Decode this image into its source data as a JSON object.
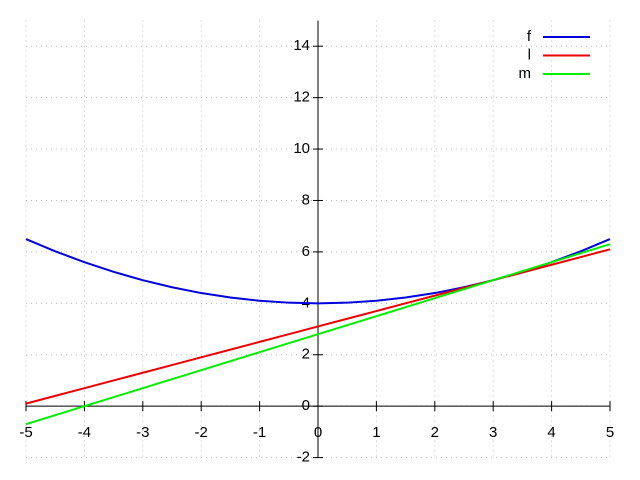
{
  "chart_data": {
    "type": "line",
    "x": [
      -5,
      -4.5,
      -4,
      -3.5,
      -3,
      -2.5,
      -2,
      -1.5,
      -1,
      -0.5,
      0,
      0.5,
      1,
      1.5,
      2,
      2.5,
      3,
      3.5,
      4,
      4.5,
      5
    ],
    "series": [
      {
        "name": "f",
        "color": "#0000dd",
        "values": [
          6.5,
          6.025,
          5.6,
          5.225,
          4.9,
          4.625,
          4.4,
          4.225,
          4.1,
          4.025,
          4,
          4.025,
          4.1,
          4.225,
          4.4,
          4.625,
          4.9,
          5.225,
          5.6,
          6.025,
          6.5
        ]
      },
      {
        "name": "l",
        "color": "#ee0000",
        "values": [
          0.1,
          0.4,
          0.7,
          1.0,
          1.3,
          1.6,
          1.9,
          2.2,
          2.5,
          2.8,
          3.1,
          3.4,
          3.7,
          4.0,
          4.3,
          4.6,
          4.9,
          5.2,
          5.5,
          5.8,
          6.1
        ]
      },
      {
        "name": "m",
        "color": "#00ee00",
        "values": [
          -0.7,
          -0.35,
          0,
          0.35,
          0.7,
          1.05,
          1.4,
          1.75,
          2.1,
          2.45,
          2.8,
          3.15,
          3.5,
          3.85,
          4.2,
          4.55,
          4.9,
          5.25,
          5.6,
          5.95,
          6.3
        ]
      }
    ],
    "xlim": [
      -5,
      5
    ],
    "ylim": [
      -2,
      15
    ],
    "xticks": [
      -5,
      -4,
      -3,
      -2,
      -1,
      0,
      1,
      2,
      3,
      4,
      5
    ],
    "yticks": [
      -2,
      0,
      2,
      4,
      6,
      8,
      10,
      12,
      14
    ],
    "grid": true,
    "legend": "top-right"
  }
}
